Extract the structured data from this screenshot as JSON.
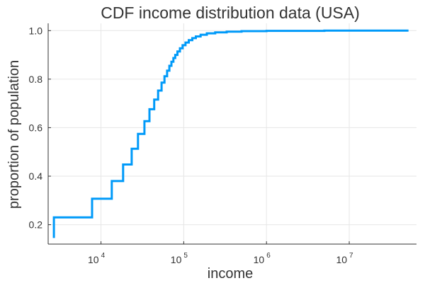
{
  "chart_data": {
    "type": "line",
    "title": "CDF income distribution data (USA)",
    "xlabel": "income",
    "ylabel": "proportion of population",
    "x_scale": "log",
    "xlim": [
      2300,
      65000000
    ],
    "ylim": [
      0.12,
      1.03
    ],
    "x_ticks": [
      {
        "base": "10",
        "exp": "4",
        "value": 10000
      },
      {
        "base": "10",
        "exp": "5",
        "value": 100000
      },
      {
        "base": "10",
        "exp": "6",
        "value": 1000000
      },
      {
        "base": "10",
        "exp": "7",
        "value": 10000000
      }
    ],
    "y_ticks": [
      {
        "label": "0.2",
        "value": 0.2
      },
      {
        "label": "0.4",
        "value": 0.4
      },
      {
        "label": "0.6",
        "value": 0.6
      },
      {
        "label": "0.8",
        "value": 0.8
      },
      {
        "label": "1.0",
        "value": 1.0
      }
    ],
    "grid": true,
    "legend": "none",
    "line_color": "#009AF9",
    "step": "post",
    "x": [
      2700,
      7800,
      13500,
      18500,
      23500,
      28000,
      33500,
      38500,
      44000,
      49000,
      54000,
      58500,
      63000,
      67000,
      71000,
      75000,
      79000,
      84000,
      90000,
      97000,
      105000,
      115000,
      127000,
      140000,
      160000,
      190000,
      240000,
      330000,
      500000,
      1000000,
      5000000,
      52000000
    ],
    "y": [
      0.23,
      0.307,
      0.38,
      0.448,
      0.513,
      0.574,
      0.627,
      0.676,
      0.716,
      0.753,
      0.786,
      0.812,
      0.835,
      0.855,
      0.872,
      0.887,
      0.9,
      0.914,
      0.927,
      0.94,
      0.951,
      0.961,
      0.969,
      0.976,
      0.983,
      0.989,
      0.993,
      0.996,
      0.998,
      0.999,
      1.0,
      1.0
    ],
    "start_y": 0.145
  }
}
